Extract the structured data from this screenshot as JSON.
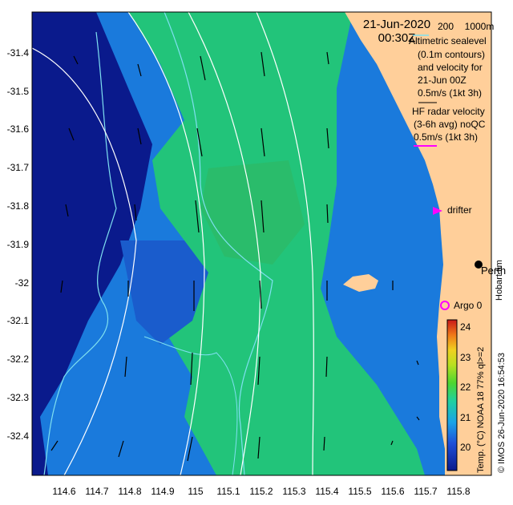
{
  "map": {
    "date": "21-Jun-2020",
    "time": "00:30Z",
    "depth_labels": [
      "200",
      "1000m"
    ],
    "legend_lines": [
      "Altimetric sealevel",
      "(0.1m contours)",
      "and velocity for",
      "21-Jun 00Z",
      "0.5m/s (1kt 3h)",
      "HF radar velocity",
      "(3-6h avg) noQC",
      "0.5m/s (1kt 3h)"
    ],
    "drifter_label": "drifter",
    "argo_label": "Argo 0",
    "city_label": "Perth",
    "credit": "Hobart tim",
    "side_caption": "© IMOS 26-Jun-2020 16:54:53",
    "colorbar_caption": "Temp. (°C) NOAA 18 77% ql>=2",
    "colors": {
      "land": "#ffcf9a",
      "deep": "#0a1a8c",
      "mid": "#1a7adc",
      "warm": "#22c47a",
      "contour": "#7fe0f0",
      "sealevel": "#ffffff",
      "drifter": "#ff00ff"
    }
  },
  "axes": {
    "x_ticks": [
      "114.6",
      "114.7",
      "114.8",
      "114.9",
      "115",
      "115.1",
      "115.2",
      "115.3",
      "115.4",
      "115.5",
      "115.6",
      "115.7",
      "115.8"
    ],
    "y_ticks": [
      "-31.4",
      "-31.5",
      "-31.6",
      "-31.7",
      "-31.8",
      "-31.9",
      "-32",
      "-32.1",
      "-32.2",
      "-32.3",
      "-32.4"
    ]
  },
  "colorbar": {
    "ticks": [
      "24",
      "23",
      "22",
      "21",
      "20"
    ],
    "range": [
      19.5,
      24.5
    ]
  }
}
